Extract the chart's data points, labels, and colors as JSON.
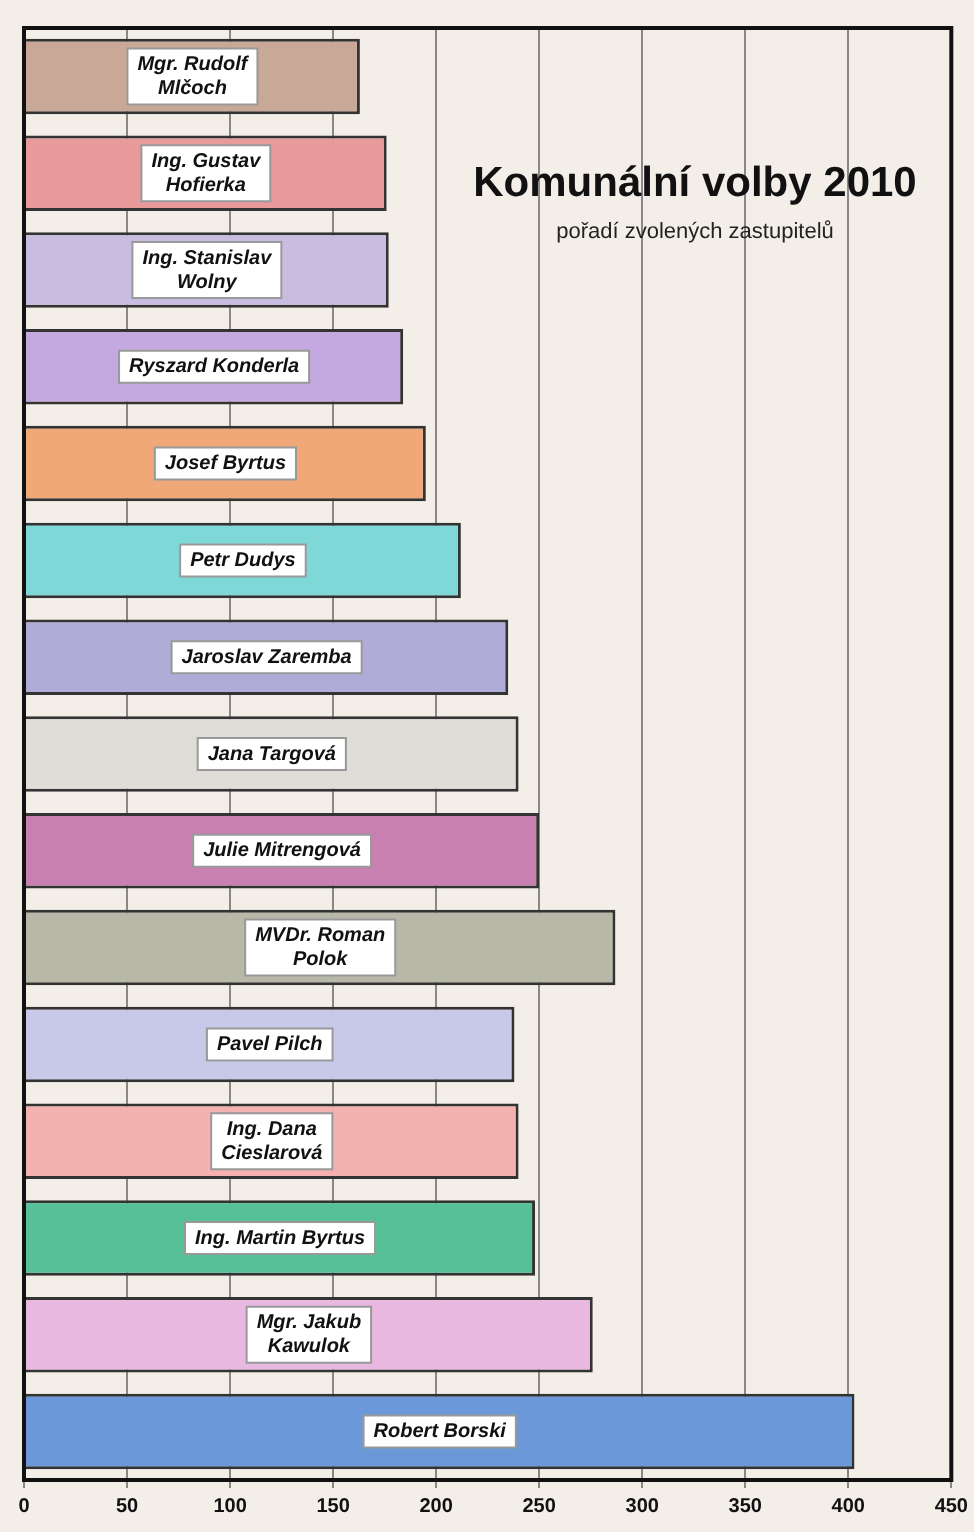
{
  "chart_data": {
    "type": "bar",
    "orientation": "horizontal",
    "title": "Komunální volby 2010",
    "subtitle": "pořadí zvolených zastupitelů",
    "categories": [
      "Mgr. Rudolf\nMlčoch",
      "Ing. Gustav\nHofierka",
      "Ing. Stanislav\nWolny",
      "Ryszard Konderla",
      "Josef Byrtus",
      "Petr Dudys",
      "Jaroslav Zaremba",
      "Jana Targová",
      "Julie Mitrengová",
      "MVDr. Roman\nPolok",
      "Pavel Pilch",
      "Ing. Dana\nCieslarová",
      "Ing. Martin Byrtus",
      "Mgr. Jakub\nKawulok",
      "Robert Borski"
    ],
    "values": [
      163,
      176,
      177,
      184,
      195,
      212,
      235,
      240,
      250,
      287,
      238,
      240,
      248,
      276,
      403
    ],
    "colors": [
      "#c9a898",
      "#e89a9a",
      "#c8bde0",
      "#c4a8e0",
      "#f0a878",
      "#7fd8d8",
      "#b0acd8",
      "#e0ddd8",
      "#c880b0",
      "#b8b8a8",
      "#c8c8e8",
      "#f5b0b0",
      "#58c098",
      "#e8b8e0",
      "#6a98d8"
    ],
    "xlim": [
      0,
      450
    ],
    "xticks": [
      0,
      50,
      100,
      150,
      200,
      250,
      300,
      350,
      400,
      450
    ],
    "grid": "x",
    "tick_labels": "x"
  }
}
